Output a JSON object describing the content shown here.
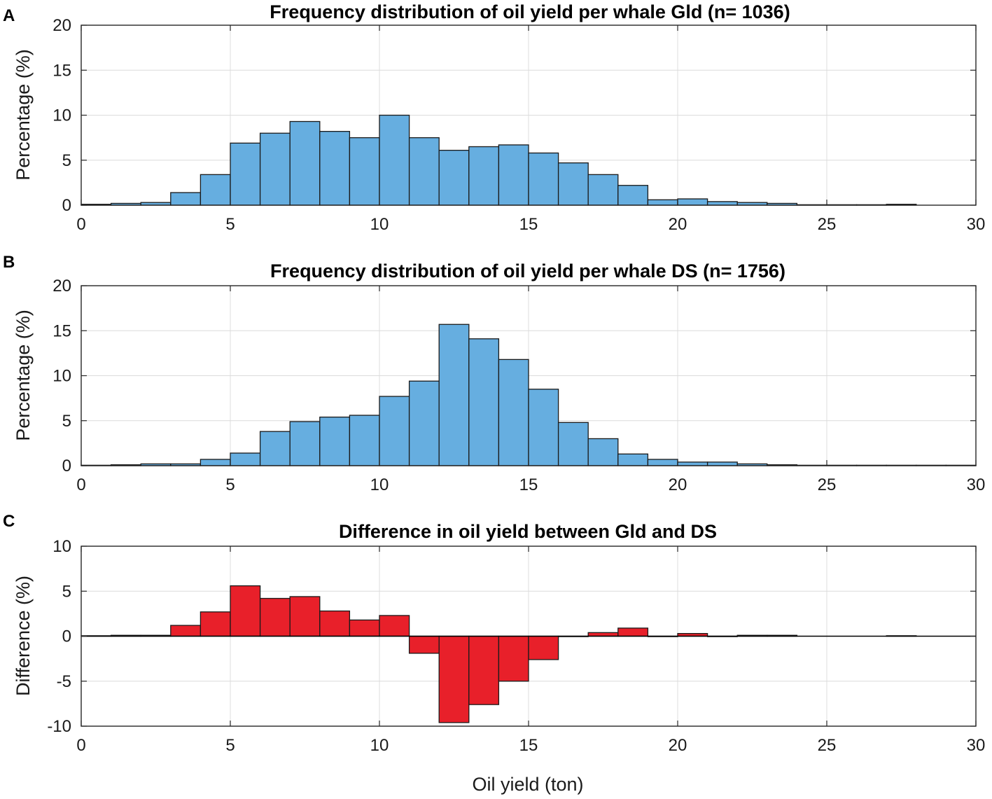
{
  "chart_data": [
    {
      "panel": "A",
      "type": "bar",
      "title": "Frequency distribution of oil yield per whale Gld (n= 1036)",
      "xlabel": "",
      "ylabel": "Percentage (%)",
      "bar_color": "#66aee0",
      "xlim": [
        0,
        30
      ],
      "ylim": [
        0,
        20
      ],
      "xticks": [
        0,
        5,
        10,
        15,
        20,
        25,
        30
      ],
      "yticks": [
        0,
        5,
        10,
        15,
        20
      ],
      "grid": true,
      "bin_width": 1,
      "bin_starts": [
        0,
        1,
        2,
        3,
        4,
        5,
        6,
        7,
        8,
        9,
        10,
        11,
        12,
        13,
        14,
        15,
        16,
        17,
        18,
        19,
        20,
        21,
        22,
        23,
        24,
        25,
        26,
        27,
        28,
        29
      ],
      "values": [
        0.1,
        0.2,
        0.3,
        1.4,
        3.4,
        6.9,
        8.0,
        9.3,
        8.2,
        7.5,
        10.0,
        7.5,
        6.1,
        6.5,
        6.7,
        5.8,
        4.7,
        3.4,
        2.2,
        0.6,
        0.7,
        0.4,
        0.3,
        0.2,
        0.05,
        0.05,
        0.05,
        0.1,
        0.0,
        0.0
      ]
    },
    {
      "panel": "B",
      "type": "bar",
      "title": "Frequency distribution of oil yield per whale DS (n= 1756)",
      "xlabel": "",
      "ylabel": "Percentage (%)",
      "bar_color": "#66aee0",
      "xlim": [
        0,
        30
      ],
      "ylim": [
        0,
        20
      ],
      "xticks": [
        0,
        5,
        10,
        15,
        20,
        25,
        30
      ],
      "yticks": [
        0,
        5,
        10,
        15,
        20
      ],
      "grid": true,
      "bin_width": 1,
      "bin_starts": [
        0,
        1,
        2,
        3,
        4,
        5,
        6,
        7,
        8,
        9,
        10,
        11,
        12,
        13,
        14,
        15,
        16,
        17,
        18,
        19,
        20,
        21,
        22,
        23,
        24,
        25,
        26,
        27,
        28,
        29
      ],
      "values": [
        0.05,
        0.1,
        0.2,
        0.2,
        0.7,
        1.4,
        3.8,
        4.9,
        5.4,
        5.6,
        7.7,
        9.4,
        15.7,
        14.1,
        11.8,
        8.5,
        4.8,
        3.0,
        1.3,
        0.7,
        0.4,
        0.4,
        0.2,
        0.1,
        0.05,
        0.05,
        0.05,
        0.05,
        0.05,
        0.05
      ]
    },
    {
      "panel": "C",
      "type": "bar",
      "title": "Difference in oil yield between Gld and DS",
      "xlabel": "Oil yield (ton)",
      "ylabel": "Difference (%)",
      "bar_color": "#e8202a",
      "xlim": [
        0,
        30
      ],
      "ylim": [
        -10,
        10
      ],
      "xticks": [
        0,
        5,
        10,
        15,
        20,
        25,
        30
      ],
      "yticks": [
        -10,
        -5,
        0,
        5,
        10
      ],
      "grid": true,
      "bin_width": 1,
      "bin_starts": [
        0,
        1,
        2,
        3,
        4,
        5,
        6,
        7,
        8,
        9,
        10,
        11,
        12,
        13,
        14,
        15,
        16,
        17,
        18,
        19,
        20,
        21,
        22,
        23,
        24,
        25,
        26,
        27,
        28,
        29
      ],
      "values": [
        0.05,
        0.1,
        0.1,
        1.2,
        2.7,
        5.6,
        4.2,
        4.4,
        2.8,
        1.8,
        2.3,
        -1.9,
        -9.6,
        -7.6,
        -5.0,
        -2.6,
        -0.05,
        0.4,
        0.9,
        -0.05,
        0.3,
        -0.05,
        0.1,
        0.1,
        0.0,
        0.0,
        0.0,
        0.05,
        0.0,
        0.0
      ]
    }
  ]
}
